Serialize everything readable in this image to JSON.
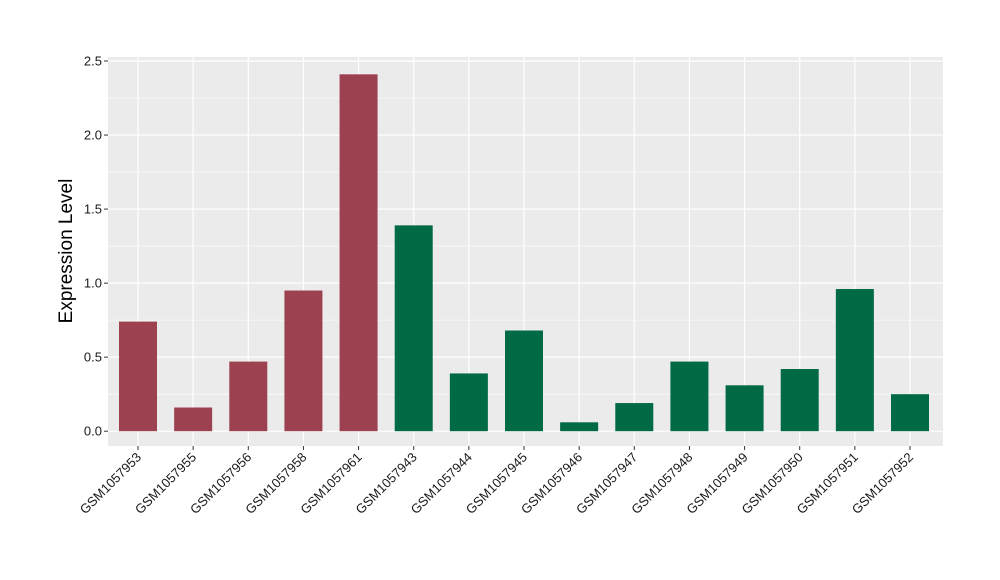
{
  "chart_data": {
    "type": "bar",
    "title": "",
    "xlabel": "",
    "ylabel": "Expression Level",
    "ylim": [
      -0.1,
      2.5
    ],
    "yticks": [
      0.0,
      0.5,
      1.0,
      1.5,
      2.0,
      2.5
    ],
    "ytick_labels": [
      "0.0",
      "0.5",
      "1.0",
      "1.5",
      "2.0",
      "2.5"
    ],
    "grid": true,
    "legend": "none",
    "categories": [
      "GSM1057953",
      "GSM1057955",
      "GSM1057956",
      "GSM1057958",
      "GSM1057961",
      "GSM1057943",
      "GSM1057944",
      "GSM1057945",
      "GSM1057946",
      "GSM1057947",
      "GSM1057948",
      "GSM1057949",
      "GSM1057950",
      "GSM1057951",
      "GSM1057952"
    ],
    "values": [
      0.74,
      0.16,
      0.47,
      0.95,
      2.41,
      1.39,
      0.39,
      0.68,
      0.06,
      0.19,
      0.47,
      0.31,
      0.42,
      0.96,
      0.25
    ],
    "bar_colors": [
      "#9b4150",
      "#9b4150",
      "#9b4150",
      "#9b4150",
      "#9b4150",
      "#006a44",
      "#006a44",
      "#006a44",
      "#006a44",
      "#006a44",
      "#006a44",
      "#006a44",
      "#006a44",
      "#006a44",
      "#006a44"
    ],
    "panel_background": "#ebebeb",
    "grid_color": "#ffffff"
  }
}
